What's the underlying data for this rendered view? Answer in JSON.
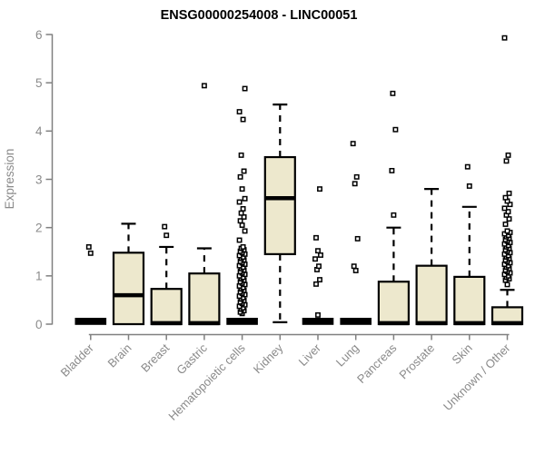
{
  "chart_data": {
    "type": "boxplot",
    "title": "ENSG00000254008 - LINC00051",
    "ylabel": "Expression",
    "xlabel": "",
    "ylim": [
      0,
      6
    ],
    "yticks": [
      0,
      1,
      2,
      3,
      4,
      5,
      6
    ],
    "grid": false,
    "legend": null,
    "colors": {
      "box_fill": "#EDE8CD",
      "box_stroke": "#000000",
      "axis_line": "#808080",
      "axis_text": "#8A8A8A",
      "title_text": "#000000",
      "outlier_fill": "#ffffff",
      "outlier_stroke": "#000000"
    },
    "categories": [
      "Bladder",
      "Brain",
      "Breast",
      "Gastric",
      "Hematopoietic cells",
      "Kidney",
      "Liver",
      "Lung",
      "Pancreas",
      "Prostate",
      "Skin",
      "Unknown / Other"
    ],
    "boxes": [
      {
        "category": "Bladder",
        "flat": true,
        "q1": 0,
        "median": 0.02,
        "q3": 0.05,
        "whisker_low": null,
        "whisker_high": null,
        "outliers": [
          1.47,
          1.6
        ]
      },
      {
        "category": "Brain",
        "flat": false,
        "q1": 0,
        "median": 0.6,
        "q3": 1.48,
        "whisker_low": null,
        "whisker_high": 2.08,
        "outliers": []
      },
      {
        "category": "Breast",
        "flat": false,
        "q1": 0,
        "median": 0.02,
        "q3": 0.73,
        "whisker_low": null,
        "whisker_high": 1.6,
        "outliers": [
          1.84,
          2.02
        ]
      },
      {
        "category": "Gastric",
        "flat": false,
        "q1": 0,
        "median": 0.02,
        "q3": 1.05,
        "whisker_low": null,
        "whisker_high": 1.57,
        "outliers": [
          4.94
        ]
      },
      {
        "category": "Hematopoietic cells",
        "flat": true,
        "q1": 0,
        "median": 0.02,
        "q3": 0.05,
        "whisker_low": null,
        "whisker_high": null,
        "outliers": [
          0.22,
          0.25,
          0.28,
          0.31,
          0.34,
          0.37,
          0.4,
          0.43,
          0.46,
          0.49,
          0.52,
          0.55,
          0.58,
          0.61,
          0.64,
          0.67,
          0.7,
          0.73,
          0.76,
          0.79,
          0.82,
          0.85,
          0.88,
          0.91,
          0.94,
          0.97,
          1.0,
          1.03,
          1.06,
          1.09,
          1.12,
          1.15,
          1.18,
          1.21,
          1.24,
          1.27,
          1.3,
          1.33,
          1.36,
          1.39,
          1.42,
          1.45,
          1.48,
          1.51,
          1.54,
          1.57,
          1.6,
          1.74,
          1.93,
          2.05,
          2.14,
          2.22,
          2.3,
          2.39,
          2.53,
          2.6,
          2.8,
          3.05,
          3.17,
          3.5,
          4.24,
          4.4,
          4.88
        ]
      },
      {
        "category": "Kidney",
        "flat": false,
        "q1": 1.45,
        "median": 2.61,
        "q3": 3.46,
        "whisker_low": 0.04,
        "whisker_high": 4.55,
        "outliers": []
      },
      {
        "category": "Liver",
        "flat": true,
        "q1": 0,
        "median": 0.02,
        "q3": 0.05,
        "whisker_low": null,
        "whisker_high": null,
        "outliers": [
          0.19,
          0.83,
          0.92,
          1.13,
          1.2,
          1.35,
          1.43,
          1.52,
          1.79,
          2.8
        ]
      },
      {
        "category": "Lung",
        "flat": true,
        "q1": 0,
        "median": 0.02,
        "q3": 0.05,
        "whisker_low": null,
        "whisker_high": null,
        "outliers": [
          1.11,
          1.2,
          1.77,
          2.91,
          3.05,
          3.74
        ]
      },
      {
        "category": "Pancreas",
        "flat": false,
        "q1": 0,
        "median": 0.02,
        "q3": 0.88,
        "whisker_low": null,
        "whisker_high": 2.0,
        "outliers": [
          2.26,
          3.18,
          4.03,
          4.78
        ]
      },
      {
        "category": "Prostate",
        "flat": false,
        "q1": 0,
        "median": 0.02,
        "q3": 1.21,
        "whisker_low": null,
        "whisker_high": 2.8,
        "outliers": []
      },
      {
        "category": "Skin",
        "flat": false,
        "q1": 0,
        "median": 0.02,
        "q3": 0.98,
        "whisker_low": null,
        "whisker_high": 2.43,
        "outliers": [
          2.86,
          3.26
        ]
      },
      {
        "category": "Unknown / Other",
        "flat": false,
        "q1": 0,
        "median": 0.02,
        "q3": 0.35,
        "whisker_low": null,
        "whisker_high": 0.71,
        "outliers": [
          0.82,
          0.91,
          0.94,
          0.97,
          1.0,
          1.03,
          1.06,
          1.09,
          1.12,
          1.15,
          1.18,
          1.21,
          1.24,
          1.27,
          1.3,
          1.33,
          1.36,
          1.39,
          1.42,
          1.45,
          1.48,
          1.51,
          1.54,
          1.57,
          1.6,
          1.63,
          1.66,
          1.69,
          1.72,
          1.75,
          1.78,
          1.81,
          1.84,
          1.87,
          1.9,
          1.93,
          2.07,
          2.18,
          2.26,
          2.33,
          2.4,
          2.48,
          2.55,
          2.62,
          2.71,
          3.38,
          3.5,
          5.93
        ]
      }
    ]
  }
}
